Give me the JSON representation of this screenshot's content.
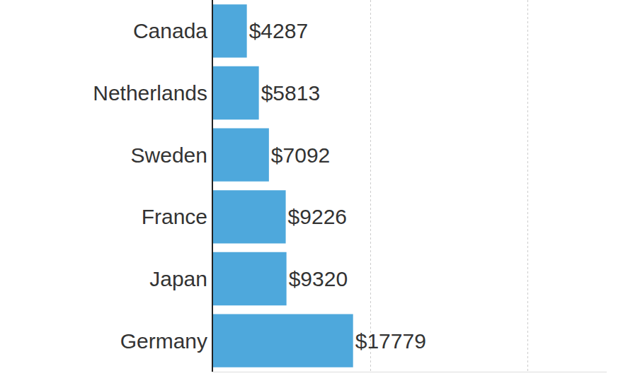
{
  "chart_data": {
    "type": "bar",
    "orientation": "horizontal",
    "categories": [
      "Canada",
      "Netherlands",
      "Sweden",
      "France",
      "Japan",
      "Germany"
    ],
    "values": [
      4287,
      5813,
      7092,
      9226,
      9320,
      17779
    ],
    "value_labels": [
      "$4287",
      "$5813",
      "$7092",
      "$9226",
      "$9320",
      "$17779"
    ],
    "data_labels": true,
    "color": "#4ea8dc",
    "xlim": [
      0,
      50000
    ],
    "xticks": [
      0,
      20000,
      40000
    ],
    "grid": true,
    "tick_labels": "y"
  }
}
